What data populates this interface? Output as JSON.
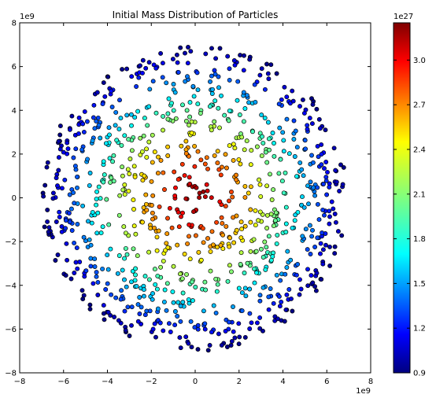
{
  "chart_data": {
    "type": "scatter",
    "title": "Initial Mass Distribution of Particles",
    "xlabel": "",
    "ylabel": "",
    "xlim": [
      -8,
      8
    ],
    "ylim": [
      -8,
      8
    ],
    "x_ticks": [
      -8,
      -6,
      -4,
      -2,
      0,
      2,
      4,
      6,
      8
    ],
    "y_ticks": [
      -8,
      -6,
      -4,
      -2,
      0,
      2,
      4,
      6,
      8
    ],
    "x_ticks_text": [
      "−8",
      "−6",
      "−4",
      "−2",
      "0",
      "2",
      "4",
      "6",
      "8"
    ],
    "y_ticks_text": [
      "−8",
      "−6",
      "−4",
      "−2",
      "0",
      "2",
      "4",
      "6",
      "8"
    ],
    "x_offset_text": "1e9",
    "y_offset_text": "1e9",
    "grid": false,
    "legend": "none",
    "colormap": "jet",
    "colorbar": {
      "range": [
        0.9,
        3.25
      ],
      "ticks": [
        0.9,
        1.2,
        1.5,
        1.8,
        2.1,
        2.4,
        2.7,
        3.0
      ],
      "ticks_text": [
        "0.9",
        "1.2",
        "1.5",
        "1.8",
        "2.1",
        "2.4",
        "2.7",
        "3.0"
      ],
      "offset_text": "1e27"
    },
    "distribution": {
      "shape": "disk",
      "radius_max": 7.0,
      "point_count": 1000,
      "mass_vs_radius": "decreasing",
      "mass_center": 3.25,
      "mass_edge": 0.9
    }
  }
}
